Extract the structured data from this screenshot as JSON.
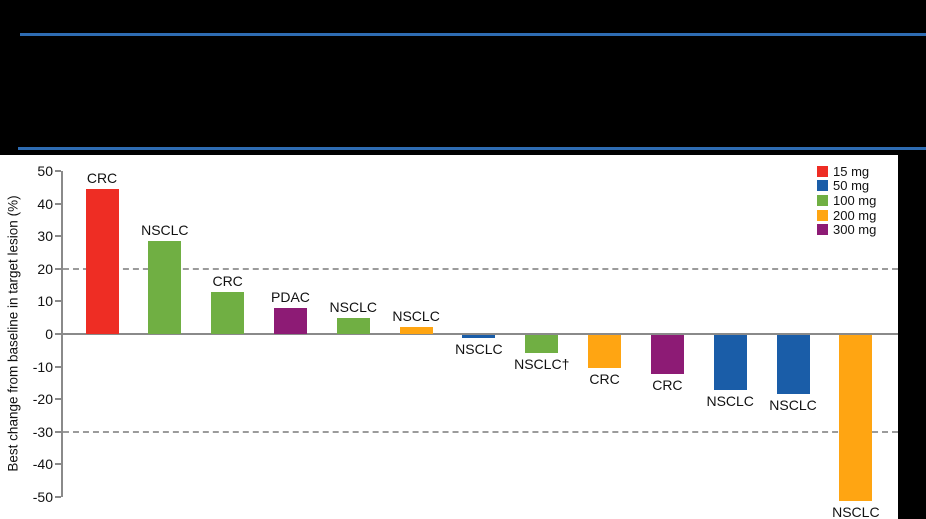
{
  "header": {
    "rule_color": "#2e6cb2"
  },
  "panel": {
    "background": "#ffffff",
    "axis_color": "#8a8a8a",
    "ref_line_color": "#9b9b9b"
  },
  "chart_data": {
    "type": "bar",
    "subtype": "waterfall",
    "title": "",
    "xlabel": "",
    "ylabel": "Best change from baseline in target lesion (%)",
    "ylim": [
      -50,
      50
    ],
    "yticks": [
      50,
      40,
      30,
      20,
      10,
      0,
      -10,
      -20,
      -30,
      -40,
      -50
    ],
    "reference_lines": [
      20,
      -30
    ],
    "grid": false,
    "legend_position": "top-right",
    "legend_title": "",
    "doses": [
      {
        "name": "15 mg",
        "color": "#ee2d24"
      },
      {
        "name": "50 mg",
        "color": "#1a5da8"
      },
      {
        "name": "100 mg",
        "color": "#70af43"
      },
      {
        "name": "200 mg",
        "color": "#ffa512"
      },
      {
        "name": "300 mg",
        "color": "#8d1b75"
      }
    ],
    "bars": [
      {
        "label": "CRC",
        "dose": "15 mg",
        "value": 44.5
      },
      {
        "label": "NSCLC",
        "dose": "100 mg",
        "value": 28.5
      },
      {
        "label": "CRC",
        "dose": "100 mg",
        "value": 13
      },
      {
        "label": "PDAC",
        "dose": "300 mg",
        "value": 8
      },
      {
        "label": "NSCLC",
        "dose": "100 mg",
        "value": 5
      },
      {
        "label": "NSCLC",
        "dose": "200 mg",
        "value": 2
      },
      {
        "label": "NSCLC",
        "dose": "50 mg",
        "value": -1
      },
      {
        "label": "NSCLC†",
        "dose": "100 mg",
        "value": -5.5
      },
      {
        "label": "CRC",
        "dose": "200 mg",
        "value": -10
      },
      {
        "label": "CRC",
        "dose": "300 mg",
        "value": -12
      },
      {
        "label": "NSCLC",
        "dose": "50 mg",
        "value": -17
      },
      {
        "label": "NSCLC",
        "dose": "50 mg",
        "value": -18
      },
      {
        "label": "NSCLC",
        "dose": "200 mg",
        "value": -51
      }
    ]
  }
}
